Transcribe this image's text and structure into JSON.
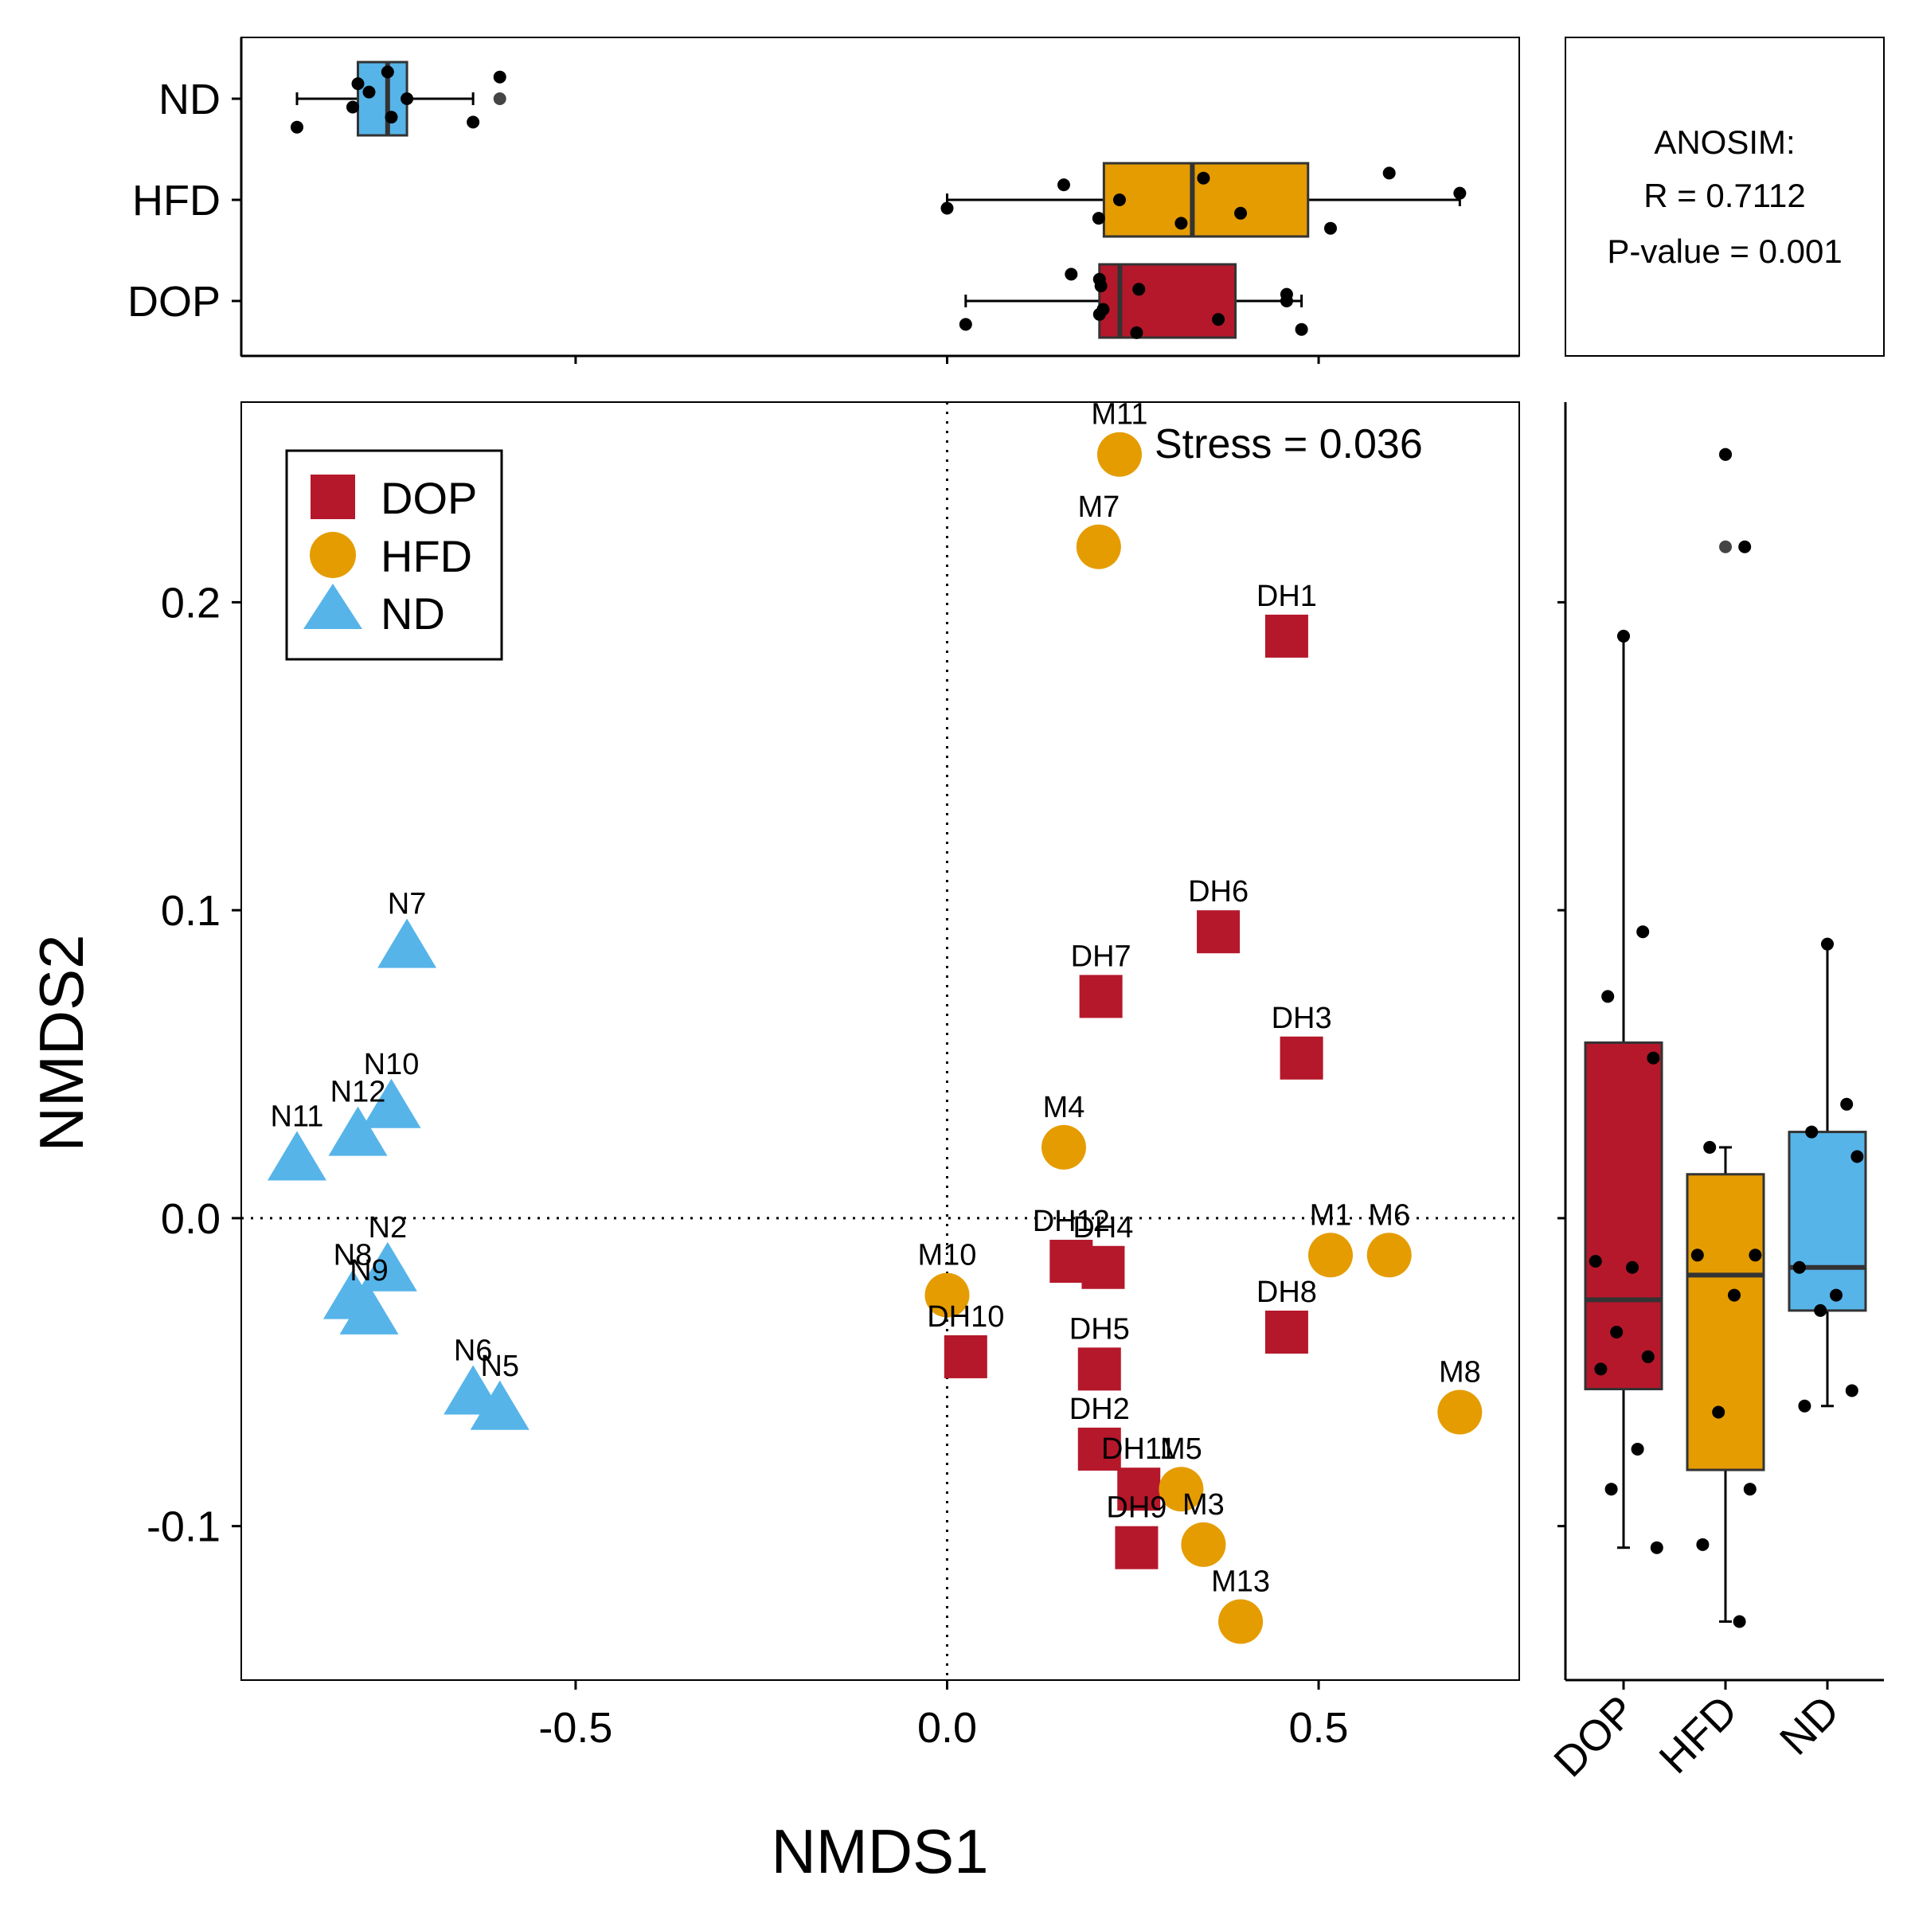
{
  "chart_data": {
    "type": "scatter",
    "xlabel": "NMDS1",
    "ylabel": "NMDS2",
    "xlim": [
      -0.95,
      0.77
    ],
    "ylim": [
      -0.15,
      0.265
    ],
    "xticks": [
      {
        "v": -0.5,
        "label": "-0.5"
      },
      {
        "v": 0.0,
        "label": "0.0"
      },
      {
        "v": 0.5,
        "label": "0.5"
      }
    ],
    "yticks": [
      {
        "v": 0.2,
        "label": "0.2"
      },
      {
        "v": 0.1,
        "label": "0.1"
      },
      {
        "v": 0.0,
        "label": "0.0"
      },
      {
        "v": -0.1,
        "label": "-0.1"
      }
    ],
    "grid": false,
    "legend_position": "top-left",
    "reference_lines": {
      "x": 0,
      "y": 0,
      "style": "dotted"
    },
    "stress_label": "Stress = 0.036",
    "anosim": {
      "line1": "ANOSIM:",
      "line2": "R =  0.7112",
      "line3": "P-value =  0.001"
    },
    "groups": [
      {
        "name": "DOP",
        "color": "#b5182b",
        "shape": "square"
      },
      {
        "name": "HFD",
        "color": "#e59c00",
        "shape": "circle"
      },
      {
        "name": "ND",
        "color": "#56b4e9",
        "shape": "triangle"
      }
    ],
    "box_categories": [
      "DOP",
      "HFD",
      "ND"
    ],
    "series": [
      {
        "name": "DOP",
        "points": [
          {
            "label": "DH1",
            "x": 0.457,
            "y": 0.189
          },
          {
            "label": "DH6",
            "x": 0.365,
            "y": 0.093
          },
          {
            "label": "DH7",
            "x": 0.207,
            "y": 0.072
          },
          {
            "label": "DH3",
            "x": 0.477,
            "y": 0.052
          },
          {
            "label": "DH12",
            "x": 0.167,
            "y": -0.014
          },
          {
            "label": "DH4",
            "x": 0.21,
            "y": -0.016
          },
          {
            "label": "DH8",
            "x": 0.457,
            "y": -0.037
          },
          {
            "label": "DH10",
            "x": 0.025,
            "y": -0.045
          },
          {
            "label": "DH5",
            "x": 0.205,
            "y": -0.049
          },
          {
            "label": "DH2",
            "x": 0.205,
            "y": -0.075
          },
          {
            "label": "DH11",
            "x": 0.258,
            "y": -0.088
          },
          {
            "label": "DH9",
            "x": 0.255,
            "y": -0.107
          }
        ]
      },
      {
        "name": "HFD",
        "points": [
          {
            "label": "M11",
            "x": 0.232,
            "y": 0.248
          },
          {
            "label": "M7",
            "x": 0.204,
            "y": 0.218
          },
          {
            "label": "M4",
            "x": 0.157,
            "y": 0.023
          },
          {
            "label": "M1",
            "x": 0.516,
            "y": -0.012
          },
          {
            "label": "M6",
            "x": 0.595,
            "y": -0.012
          },
          {
            "label": "M10",
            "x": 0.0,
            "y": -0.025
          },
          {
            "label": "M8",
            "x": 0.69,
            "y": -0.063
          },
          {
            "label": "M5",
            "x": 0.315,
            "y": -0.088
          },
          {
            "label": "M3",
            "x": 0.345,
            "y": -0.106
          },
          {
            "label": "M13",
            "x": 0.395,
            "y": -0.131
          }
        ]
      },
      {
        "name": "ND",
        "points": [
          {
            "label": "N7",
            "x": -0.727,
            "y": 0.089
          },
          {
            "label": "N10",
            "x": -0.748,
            "y": 0.037
          },
          {
            "label": "N12",
            "x": -0.793,
            "y": 0.028
          },
          {
            "label": "N11",
            "x": -0.875,
            "y": 0.02
          },
          {
            "label": "N2",
            "x": -0.753,
            "y": -0.016
          },
          {
            "label": "N8",
            "x": -0.8,
            "y": -0.025
          },
          {
            "label": "N9",
            "x": -0.778,
            "y": -0.03
          },
          {
            "label": "N6",
            "x": -0.638,
            "y": -0.056
          },
          {
            "label": "N5",
            "x": -0.602,
            "y": -0.061
          }
        ]
      }
    ]
  }
}
